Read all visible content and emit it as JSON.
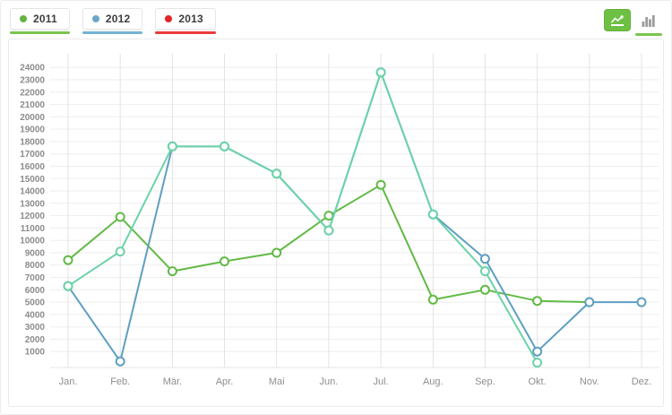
{
  "legend": {
    "items": [
      {
        "label": "2011",
        "dot_color": "#64b43f",
        "underline_color": "#7cc34f"
      },
      {
        "label": "2012",
        "dot_color": "#6ba7c7",
        "underline_color": "#74b3d4"
      },
      {
        "label": "2013",
        "dot_color": "#e32526",
        "underline_color": "#ea3b3b"
      }
    ]
  },
  "toolbar": {
    "line_chart_button": {
      "icon": "line-chart-icon",
      "active": true,
      "bg_color": "#6ec044",
      "icon_color": "#ffffff"
    },
    "bar_chart_button": {
      "icon": "bar-chart-icon",
      "active": false,
      "icon_color": "#9c9c9c",
      "underline_color": "#7cc34f"
    }
  },
  "chart_data": {
    "type": "line",
    "title": "",
    "xlabel": "",
    "ylabel": "",
    "grid": true,
    "legend_position": "top-left",
    "x_labels": [
      "Jan.",
      "Feb.",
      "Mär.",
      "Apr.",
      "Mai",
      "Jun.",
      "Jul.",
      "Aug.",
      "Sep.",
      "Okt.",
      "Nov.",
      "Dez."
    ],
    "y_ticks": [
      24000,
      23000,
      22000,
      21000,
      20000,
      19000,
      18000,
      17000,
      16000,
      15000,
      14000,
      13000,
      12000,
      11000,
      10000,
      9000,
      8000,
      7000,
      6000,
      5000,
      4000,
      3000,
      2000,
      1000
    ],
    "ylim": [
      0,
      24500
    ],
    "series": [
      {
        "name": "2011",
        "color": "#62ba46",
        "values": [
          8400,
          11900,
          7500,
          8300,
          9000,
          12000,
          14500,
          5200,
          6000,
          5100,
          5000,
          null
        ]
      },
      {
        "name": "2012",
        "color": "#5f9fc2",
        "values": [
          6300,
          200,
          17600,
          17600,
          15400,
          10800,
          23600,
          12100,
          8500,
          1000,
          5000,
          5000
        ]
      },
      {
        "name": "2013",
        "color": "#6cd3a8",
        "values": [
          6300,
          9100,
          17600,
          17600,
          15400,
          10800,
          23600,
          12100,
          7500,
          100,
          null,
          null
        ]
      }
    ]
  }
}
